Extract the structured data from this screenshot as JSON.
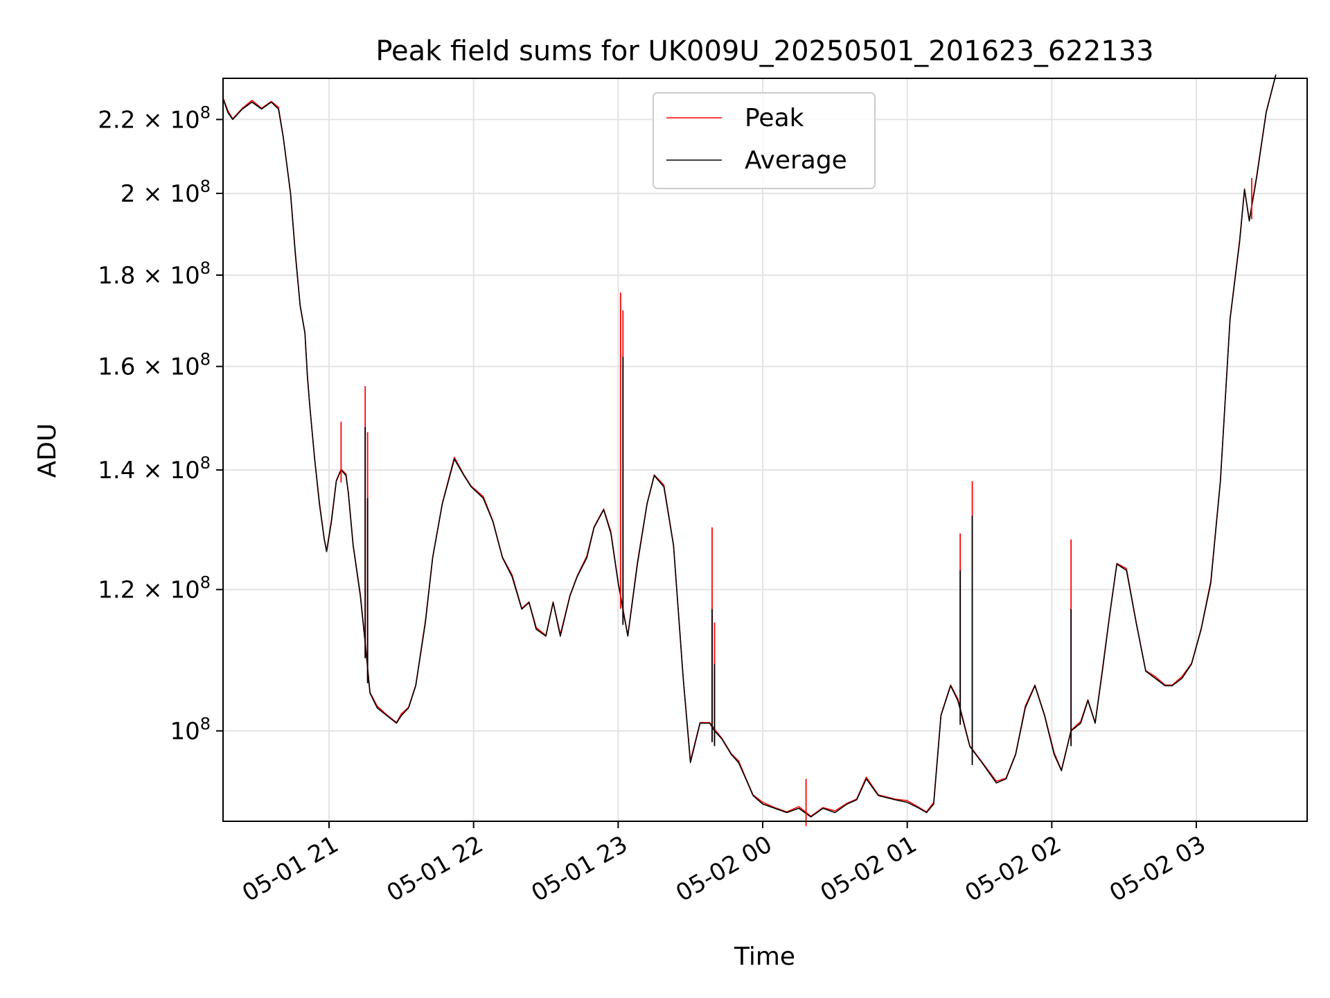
{
  "chart_data": {
    "type": "line",
    "title": "Peak field sums for UK009U_20250501_201623_622133",
    "xlabel": "Time",
    "ylabel": "ADU",
    "y_scale": "log",
    "grid": true,
    "legend_position": "upper center",
    "xlim": [
      "2025-05-01 20:16",
      "2025-05-02 03:46"
    ],
    "ylim": [
      89000000,
      232000000
    ],
    "x_ticks": [
      {
        "value": "2025-05-01 21:00",
        "label": "05-01 21"
      },
      {
        "value": "2025-05-01 22:00",
        "label": "05-01 22"
      },
      {
        "value": "2025-05-01 23:00",
        "label": "05-01 23"
      },
      {
        "value": "2025-05-02 00:00",
        "label": "05-02 00"
      },
      {
        "value": "2025-05-02 01:00",
        "label": "05-02 01"
      },
      {
        "value": "2025-05-02 02:00",
        "label": "05-02 02"
      },
      {
        "value": "2025-05-02 03:00",
        "label": "05-02 03"
      }
    ],
    "y_ticks": [
      {
        "value": 100000000,
        "mant": "",
        "exp": "8",
        "label": "10^8"
      },
      {
        "value": 120000000,
        "mant": "1.2 × 10",
        "exp": "8",
        "label": "1.2 × 10^8"
      },
      {
        "value": 140000000,
        "mant": "1.4 × 10",
        "exp": "8",
        "label": "1.4 × 10^8"
      },
      {
        "value": 160000000,
        "mant": "1.6 × 10",
        "exp": "8",
        "label": "1.6 × 10^8"
      },
      {
        "value": 180000000,
        "mant": "1.8 × 10",
        "exp": "8",
        "label": "1.8 × 10^8"
      },
      {
        "value": 200000000,
        "mant": "2 × 10",
        "exp": "8",
        "label": "2 × 10^8"
      },
      {
        "value": 220000000,
        "mant": "2.2 × 10",
        "exp": "8",
        "label": "2.2 × 10^8"
      }
    ],
    "series": [
      {
        "name": "Peak",
        "color": "#ff0000"
      },
      {
        "name": "Average",
        "color": "#000000"
      }
    ],
    "average": {
      "x": [
        "2025-05-01 20:16",
        "2025-05-01 20:18",
        "2025-05-01 20:20",
        "2025-05-01 20:24",
        "2025-05-01 20:28",
        "2025-05-01 20:32",
        "2025-05-01 20:36",
        "2025-05-01 20:39",
        "2025-05-01 20:41",
        "2025-05-01 20:44",
        "2025-05-01 20:46",
        "2025-05-01 20:48",
        "2025-05-01 20:50",
        "2025-05-01 20:51",
        "2025-05-01 20:52",
        "2025-05-01 20:54",
        "2025-05-01 20:56",
        "2025-05-01 20:58",
        "2025-05-01 20:59",
        "2025-05-01 21:01",
        "2025-05-01 21:03",
        "2025-05-01 21:05",
        "2025-05-01 21:07",
        "2025-05-01 21:08",
        "2025-05-01 21:10",
        "2025-05-01 21:13",
        "2025-05-01 21:15",
        "2025-05-01 21:17",
        "2025-05-01 21:20",
        "2025-05-01 21:24",
        "2025-05-01 21:28",
        "2025-05-01 21:30",
        "2025-05-01 21:33",
        "2025-05-01 21:36",
        "2025-05-01 21:40",
        "2025-05-01 21:43",
        "2025-05-01 21:47",
        "2025-05-01 21:52",
        "2025-05-01 21:56",
        "2025-05-01 21:59",
        "2025-05-01 22:04",
        "2025-05-01 22:08",
        "2025-05-01 22:12",
        "2025-05-01 22:16",
        "2025-05-01 22:20",
        "2025-05-01 22:23",
        "2025-05-01 22:26",
        "2025-05-01 22:30",
        "2025-05-01 22:33",
        "2025-05-01 22:36",
        "2025-05-01 22:40",
        "2025-05-01 22:43",
        "2025-05-01 22:47",
        "2025-05-01 22:50",
        "2025-05-01 22:54",
        "2025-05-01 22:57",
        "2025-05-01 23:00",
        "2025-05-01 23:04",
        "2025-05-01 23:08",
        "2025-05-01 23:12",
        "2025-05-01 23:15",
        "2025-05-01 23:19",
        "2025-05-01 23:23",
        "2025-05-01 23:27",
        "2025-05-01 23:30",
        "2025-05-01 23:34",
        "2025-05-01 23:38",
        "2025-05-01 23:40",
        "2025-05-01 23:43",
        "2025-05-01 23:47",
        "2025-05-01 23:50",
        "2025-05-01 23:53",
        "2025-05-01 23:56",
        "2025-05-02 00:00",
        "2025-05-02 00:05",
        "2025-05-02 00:10",
        "2025-05-02 00:15",
        "2025-05-02 00:20",
        "2025-05-02 00:25",
        "2025-05-02 00:30",
        "2025-05-02 00:35",
        "2025-05-02 00:39",
        "2025-05-02 00:43",
        "2025-05-02 00:48",
        "2025-05-02 00:55",
        "2025-05-02 01:00",
        "2025-05-02 01:05",
        "2025-05-02 01:08",
        "2025-05-02 01:11",
        "2025-05-02 01:14",
        "2025-05-02 01:18",
        "2025-05-02 01:21",
        "2025-05-02 01:26",
        "2025-05-02 01:31",
        "2025-05-02 01:37",
        "2025-05-02 01:41",
        "2025-05-02 01:45",
        "2025-05-02 01:49",
        "2025-05-02 01:53",
        "2025-05-02 01:57",
        "2025-05-02 02:01",
        "2025-05-02 02:04",
        "2025-05-02 02:08",
        "2025-05-02 02:12",
        "2025-05-02 02:15",
        "2025-05-02 02:18",
        "2025-05-02 02:21",
        "2025-05-02 02:24",
        "2025-05-02 02:27",
        "2025-05-02 02:31",
        "2025-05-02 02:35",
        "2025-05-02 02:39",
        "2025-05-02 02:43",
        "2025-05-02 02:47",
        "2025-05-02 02:50",
        "2025-05-02 02:54",
        "2025-05-02 02:58",
        "2025-05-02 03:02",
        "2025-05-02 03:06",
        "2025-05-02 03:10",
        "2025-05-02 03:14",
        "2025-05-02 03:18",
        "2025-05-02 03:20",
        "2025-05-02 03:22",
        "2025-05-02 03:25",
        "2025-05-02 03:29",
        "2025-05-02 03:33"
      ],
      "y": [
        226000000,
        222000000,
        220000000,
        223000000,
        225000000,
        223000000,
        225000000,
        223000000,
        215000000,
        200000000,
        185000000,
        173000000,
        167000000,
        158000000,
        152000000,
        142000000,
        134000000,
        128000000,
        126000000,
        131000000,
        138000000,
        140000000,
        139000000,
        136000000,
        127000000,
        119000000,
        112000000,
        105000000,
        103000000,
        102000000,
        101000000,
        102000000,
        103000000,
        106000000,
        115000000,
        125000000,
        134000000,
        142000000,
        139000000,
        137000000,
        135000000,
        131000000,
        125000000,
        122000000,
        117000000,
        118000000,
        114000000,
        113000000,
        118000000,
        113000000,
        119000000,
        122000000,
        125000000,
        130000000,
        133000000,
        129000000,
        121000000,
        113000000,
        124000000,
        134000000,
        139000000,
        137000000,
        127000000,
        107000000,
        96000000,
        101000000,
        101000000,
        100000000,
        99000000,
        97000000,
        96000000,
        94000000,
        92000000,
        91000000,
        90500000,
        90000000,
        90500000,
        89500000,
        90500000,
        90000000,
        91000000,
        91500000,
        94000000,
        92000000,
        91500000,
        91200000,
        90500000,
        90000000,
        91000000,
        102000000,
        106000000,
        104000000,
        98000000,
        96000000,
        93500000,
        94000000,
        97000000,
        103000000,
        106000000,
        102000000,
        97000000,
        95000000,
        100000000,
        101000000,
        104000000,
        101000000,
        108000000,
        116000000,
        124000000,
        123000000,
        115000000,
        108000000,
        107000000,
        106000000,
        106000000,
        107000000,
        109000000,
        114000000,
        121000000,
        138000000,
        170000000,
        188000000,
        201000000,
        193000000,
        204000000,
        222000000,
        233000000
      ]
    },
    "peak_spikes": [
      {
        "x": "2025-05-01 21:05",
        "y": 149000000
      },
      {
        "x": "2025-05-01 21:15",
        "y": 156000000
      },
      {
        "x": "2025-05-01 21:16",
        "y": 147000000
      },
      {
        "x": "2025-05-01 23:01",
        "y": 176000000
      },
      {
        "x": "2025-05-01 23:02",
        "y": 172000000
      },
      {
        "x": "2025-05-01 23:39",
        "y": 130000000
      },
      {
        "x": "2025-05-01 23:40",
        "y": 115000000
      },
      {
        "x": "2025-05-02 00:18",
        "y": 94000000
      },
      {
        "x": "2025-05-02 01:22",
        "y": 129000000
      },
      {
        "x": "2025-05-02 01:27",
        "y": 138000000
      },
      {
        "x": "2025-05-02 02:08",
        "y": 128000000
      },
      {
        "x": "2025-05-02 03:23",
        "y": 204000000
      }
    ],
    "average_spikes": [
      {
        "x": "2025-05-01 21:15",
        "y": 148000000
      },
      {
        "x": "2025-05-01 21:16",
        "y": 135000000
      },
      {
        "x": "2025-05-01 23:02",
        "y": 162000000
      },
      {
        "x": "2025-05-01 23:39",
        "y": 117000000
      },
      {
        "x": "2025-05-01 23:40",
        "y": 109000000
      },
      {
        "x": "2025-05-02 01:22",
        "y": 123000000
      },
      {
        "x": "2025-05-02 01:27",
        "y": 132000000
      },
      {
        "x": "2025-05-02 02:08",
        "y": 117000000
      }
    ]
  }
}
